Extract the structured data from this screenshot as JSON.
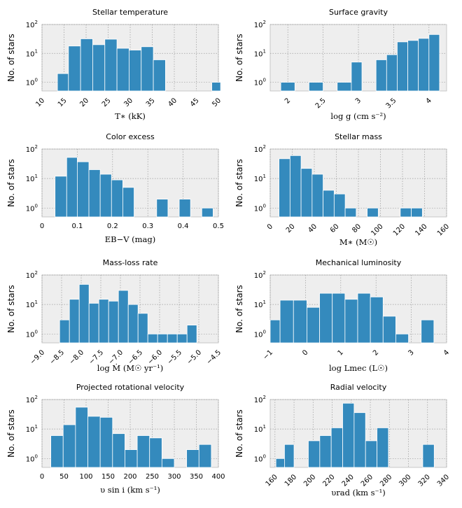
{
  "figure": {
    "y_axis_label": "No. of stars"
  },
  "chart_data": [
    {
      "type": "bar",
      "title": "Stellar temperature",
      "xlabel": "T∗ (kK)",
      "ylabel": "No. of stars",
      "xlim": [
        10,
        50
      ],
      "xticks": [
        10,
        15,
        20,
        25,
        30,
        35,
        40,
        45,
        50
      ],
      "rotate_xticks": true,
      "ylim": [
        0.5,
        100
      ],
      "bins": [
        [
          13.5,
          16
        ],
        [
          16,
          18.75
        ],
        [
          18.75,
          21.5
        ],
        [
          21.5,
          24.25
        ],
        [
          24.25,
          27
        ],
        [
          27,
          29.75
        ],
        [
          29.75,
          32.5
        ],
        [
          32.5,
          35.25
        ],
        [
          35.25,
          38
        ],
        [
          48.5,
          50.5
        ]
      ],
      "values": [
        2,
        18,
        32,
        20,
        31,
        15,
        13,
        17,
        6,
        1
      ]
    },
    {
      "type": "bar",
      "title": "Surface gravity",
      "xlabel": "log g (cm s⁻²)",
      "ylabel": "No. of stars",
      "xlim": [
        1.75,
        4.25
      ],
      "xticks": [
        2.0,
        2.5,
        3.0,
        3.5,
        4.0
      ],
      "rotate_xticks": true,
      "ylim": [
        0.5,
        100
      ],
      "bins": [
        [
          1.9,
          2.1
        ],
        [
          2.3,
          2.5
        ],
        [
          2.7,
          2.9
        ],
        [
          2.9,
          3.05
        ],
        [
          3.25,
          3.4
        ],
        [
          3.4,
          3.55
        ],
        [
          3.55,
          3.7
        ],
        [
          3.7,
          3.85
        ],
        [
          3.85,
          4.0
        ],
        [
          4.0,
          4.15
        ]
      ],
      "values": [
        1,
        1,
        1,
        5,
        6,
        9,
        25,
        28,
        33,
        45
      ]
    },
    {
      "type": "bar",
      "title": "Color excess",
      "xlabel": "EB−V (mag)",
      "ylabel": "No. of stars",
      "xlim": [
        0.0,
        0.5
      ],
      "xticks": [
        0.0,
        0.1,
        0.2,
        0.3,
        0.4,
        0.5
      ],
      "rotate_xticks": false,
      "ylim": [
        0.5,
        100
      ],
      "bins": [
        [
          0.037,
          0.07
        ],
        [
          0.07,
          0.1
        ],
        [
          0.1,
          0.133
        ],
        [
          0.133,
          0.165
        ],
        [
          0.165,
          0.197
        ],
        [
          0.197,
          0.229
        ],
        [
          0.229,
          0.261
        ],
        [
          0.325,
          0.357
        ],
        [
          0.389,
          0.421
        ],
        [
          0.453,
          0.485
        ]
      ],
      "values": [
        12,
        52,
        37,
        20,
        14,
        9,
        5,
        2,
        2,
        1
      ]
    },
    {
      "type": "bar",
      "title": "Stellar mass",
      "xlabel": "M∗ (M☉)",
      "ylabel": "No. of stars",
      "xlim": [
        0,
        160
      ],
      "xticks": [
        0,
        20,
        40,
        60,
        80,
        100,
        120,
        140,
        160
      ],
      "rotate_xticks": true,
      "ylim": [
        0.5,
        100
      ],
      "bins": [
        [
          8,
          18
        ],
        [
          18,
          28
        ],
        [
          28,
          38
        ],
        [
          38,
          48
        ],
        [
          48,
          58
        ],
        [
          58,
          68
        ],
        [
          68,
          78
        ],
        [
          88,
          98
        ],
        [
          118,
          128
        ],
        [
          128,
          138
        ]
      ],
      "values": [
        47,
        60,
        22,
        14,
        4,
        3,
        1,
        1,
        1,
        1
      ]
    },
    {
      "type": "bar",
      "title": "Mass-loss rate",
      "xlabel": "log Ṁ (M☉ yr⁻¹)",
      "ylabel": "No. of stars",
      "xlim": [
        -9.0,
        -4.5
      ],
      "xticks": [
        -9.0,
        -8.5,
        -8.0,
        -7.5,
        -7.0,
        -6.5,
        -6.0,
        -5.5,
        -5.0,
        -4.5
      ],
      "xtick_labels": [
        "−9.0",
        "−8.5",
        "−8.0",
        "−7.5",
        "−7.0",
        "−6.5",
        "−6.0",
        "−5.5",
        "−5.0",
        "−4.5"
      ],
      "rotate_xticks": true,
      "ylim": [
        0.5,
        100
      ],
      "bins": [
        [
          -8.55,
          -8.3
        ],
        [
          -8.3,
          -8.05
        ],
        [
          -8.05,
          -7.8
        ],
        [
          -7.8,
          -7.55
        ],
        [
          -7.55,
          -7.3
        ],
        [
          -7.3,
          -7.05
        ],
        [
          -7.05,
          -6.8
        ],
        [
          -6.8,
          -6.55
        ],
        [
          -6.55,
          -6.3
        ],
        [
          -6.3,
          -6.05
        ],
        [
          -6.05,
          -5.8
        ],
        [
          -5.8,
          -5.55
        ],
        [
          -5.55,
          -5.3
        ],
        [
          -5.3,
          -5.05
        ],
        [
          -5.05,
          -4.8
        ]
      ],
      "values": [
        3,
        15,
        48,
        11,
        15,
        13,
        30,
        10,
        5,
        1,
        1,
        1,
        1,
        2,
        0
      ]
    },
    {
      "type": "bar",
      "title": "Mechanical luminosity",
      "xlabel": "log Lmec (L☉)",
      "ylabel": "No. of stars",
      "xlim": [
        -1,
        4
      ],
      "xticks": [
        -1,
        0,
        1,
        2,
        3,
        4
      ],
      "xtick_labels": [
        "−1",
        "0",
        "1",
        "2",
        "3",
        "4"
      ],
      "rotate_xticks": true,
      "ylim": [
        0.5,
        100
      ],
      "bins": [
        [
          -1.0,
          -0.72
        ],
        [
          -0.72,
          -0.34
        ],
        [
          -0.34,
          0.04
        ],
        [
          0.04,
          0.4
        ],
        [
          0.4,
          0.76
        ],
        [
          0.76,
          1.12
        ],
        [
          1.12,
          1.48
        ],
        [
          1.48,
          1.84
        ],
        [
          1.84,
          2.2
        ],
        [
          2.2,
          2.56
        ],
        [
          2.56,
          2.92
        ],
        [
          3.28,
          3.64
        ]
      ],
      "values": [
        3,
        14,
        14,
        8,
        24,
        24,
        15,
        24,
        18,
        4,
        1,
        3
      ]
    },
    {
      "type": "bar",
      "title": "Projected rotational velocity",
      "xlabel": "υ sin i (km s⁻¹)",
      "ylabel": "No. of stars",
      "xlim": [
        0,
        400
      ],
      "xticks": [
        0,
        50,
        100,
        150,
        200,
        250,
        300,
        350,
        400
      ],
      "rotate_xticks": false,
      "ylim": [
        0.5,
        100
      ],
      "bins": [
        [
          20,
          48
        ],
        [
          48,
          76
        ],
        [
          76,
          104
        ],
        [
          104,
          132
        ],
        [
          132,
          160
        ],
        [
          160,
          188
        ],
        [
          188,
          216
        ],
        [
          216,
          244
        ],
        [
          244,
          272
        ],
        [
          272,
          300
        ],
        [
          328,
          356
        ],
        [
          356,
          384
        ]
      ],
      "values": [
        6,
        14,
        55,
        27,
        25,
        7,
        2,
        6,
        5,
        1,
        2,
        3
      ]
    },
    {
      "type": "bar",
      "title": "Radial velocity",
      "xlabel": "υrad (km s⁻¹)",
      "ylabel": "No. of stars",
      "xlim": [
        155,
        340
      ],
      "xticks": [
        160,
        180,
        200,
        220,
        240,
        260,
        280,
        300,
        320,
        340
      ],
      "rotate_xticks": true,
      "ylim": [
        0.5,
        100
      ],
      "bins": [
        [
          161,
          170
        ],
        [
          170,
          180
        ],
        [
          195,
          207
        ],
        [
          207,
          219
        ],
        [
          219,
          231
        ],
        [
          231,
          243
        ],
        [
          243,
          255
        ],
        [
          255,
          267
        ],
        [
          267,
          279
        ],
        [
          315,
          327
        ]
      ],
      "values": [
        1,
        3,
        4,
        6,
        11,
        75,
        36,
        4,
        11,
        3
      ]
    }
  ]
}
